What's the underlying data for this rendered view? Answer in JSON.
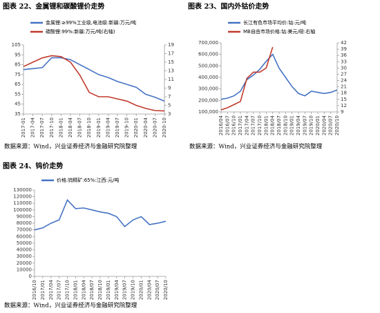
{
  "chart_data": [
    {
      "type": "line",
      "title": "图表 22、金属锂和碳酸锂价走势",
      "source": "数据来源：Wind，兴业证券经济与金融研究院整理",
      "categories": [
        "2017-01",
        "2017-04",
        "2017-07",
        "2017-10",
        "2018-01",
        "2018-04",
        "2018-07",
        "2018-10",
        "2019-01",
        "2019-04",
        "2019-07",
        "2019-10",
        "2020-01",
        "2020-04",
        "2020-07",
        "2020-10"
      ],
      "series": [
        {
          "name": "金属锂:≥99%工业级,电池级:新疆:万元/吨",
          "color": "#4472c4",
          "values": [
            80,
            81,
            82,
            92,
            92,
            90,
            85,
            80,
            75,
            72,
            68,
            65,
            62,
            55,
            52,
            48
          ]
        },
        {
          "name": "碳酸锂:99%:新疆:万元/吨(右轴)",
          "color": "#c0392b",
          "axis": "y2",
          "values": [
            14,
            15,
            16,
            16.5,
            16.3,
            15,
            12,
            8,
            7,
            7,
            6.5,
            6,
            5,
            4.3,
            3.8,
            3.7
          ]
        }
      ],
      "ylim": [
        35,
        105
      ],
      "yticks": [
        35,
        45,
        55,
        65,
        75,
        85,
        95,
        105
      ],
      "y2lim": [
        3,
        19
      ],
      "y2ticks": [
        3,
        5,
        7,
        9,
        11,
        13,
        15,
        17,
        19
      ]
    },
    {
      "type": "line",
      "title": "图表 23、国内外钴价走势",
      "source": "数据来源：Wind，兴业证券经济与金融研究院整理",
      "categories": [
        "2016/04",
        "2016/07",
        "2016/10",
        "2017/01",
        "2017/04",
        "2017/07",
        "2017/10",
        "2018/01",
        "2018/04",
        "2018/07",
        "2018/10",
        "2019/01",
        "2019/04",
        "2019/07",
        "2019/10",
        "2020/01",
        "2020/04",
        "2020/07",
        "2020/10"
      ],
      "series": [
        {
          "name": "长江有色市场平均价:钴:元/吨",
          "color": "#4472c4",
          "values": [
            210000,
            220000,
            240000,
            280000,
            380000,
            420000,
            470000,
            540000,
            600000,
            480000,
            400000,
            320000,
            260000,
            240000,
            280000,
            270000,
            260000,
            270000,
            290000
          ]
        },
        {
          "name": "MB自由市场价格:钴:美元/磅:右轴",
          "color": "#c0392b",
          "axis": "y2",
          "values": [
            10,
            11,
            12.5,
            14,
            25,
            28,
            28,
            30,
            40,
            null,
            null,
            null,
            null,
            null,
            null,
            null,
            null,
            null,
            null
          ]
        }
      ],
      "ylim": [
        100000,
        700000
      ],
      "yticks": [
        {
          "value": 100000,
          "label": "100,000"
        },
        {
          "value": 200000,
          "label": "200,000"
        },
        {
          "value": 300000,
          "label": "300,000"
        },
        {
          "value": 400000,
          "label": "400,000"
        },
        {
          "value": 500000,
          "label": "500,000"
        },
        {
          "value": 600000,
          "label": "600,000"
        },
        {
          "value": 700000,
          "label": "700,000"
        }
      ],
      "y2lim": [
        9,
        42
      ],
      "y2ticks": [
        9,
        12,
        15,
        18,
        21,
        24,
        27,
        30,
        33,
        36,
        39,
        42
      ]
    },
    {
      "type": "line",
      "title": "图表 24、钨价走势",
      "source": "数据来源：Wind，兴业证券经济与金融研究院整理",
      "categories": [
        "2016/10",
        "2017/01",
        "2017/04",
        "2017/07",
        "2017/10",
        "2018/01",
        "2018/04",
        "2018/07",
        "2018/10",
        "2019/01",
        "2019/04",
        "2019/07",
        "2019/10",
        "2020/01",
        "2020/04",
        "2020/07",
        "2020/10"
      ],
      "series": [
        {
          "name": "价格:钨精矿:65%:江西:元/吨",
          "color": "#4472c4",
          "values": [
            70000,
            73000,
            80000,
            85000,
            115000,
            102000,
            103000,
            100000,
            97000,
            95000,
            90000,
            75000,
            85000,
            90000,
            78000,
            80000,
            83000
          ]
        }
      ],
      "ylim": [
        0,
        130000
      ],
      "yticks": [
        0,
        10000,
        20000,
        30000,
        40000,
        50000,
        60000,
        70000,
        80000,
        90000,
        100000,
        110000,
        120000,
        130000
      ]
    }
  ]
}
